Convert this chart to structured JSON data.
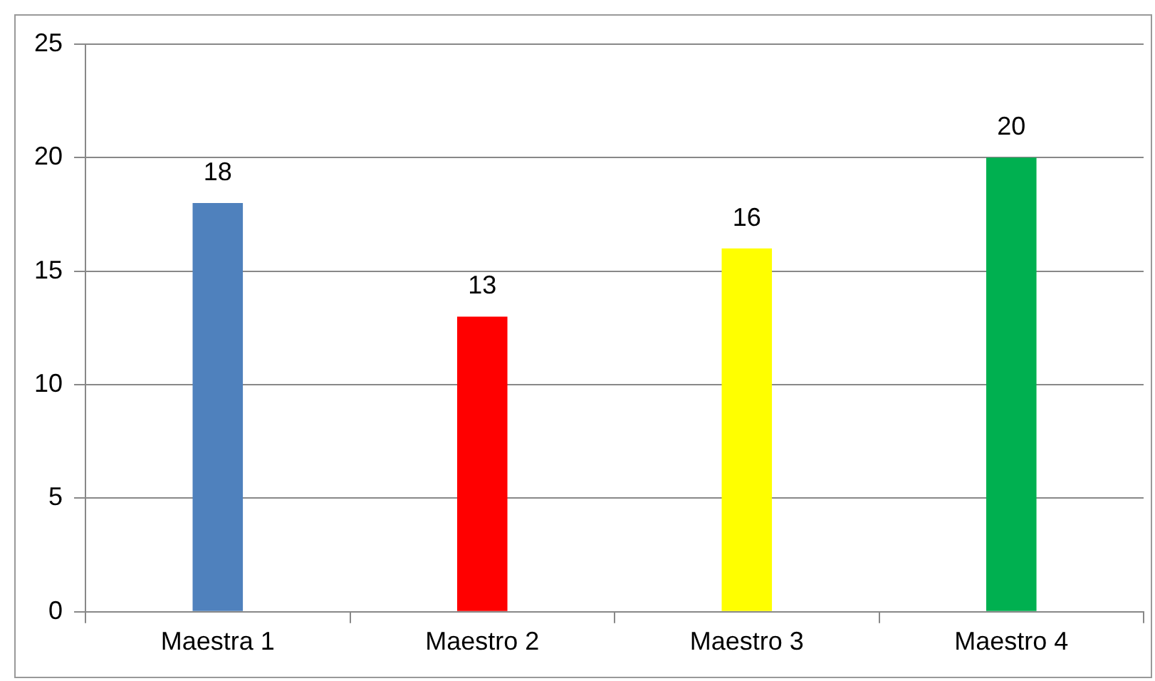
{
  "chart_data": {
    "type": "bar",
    "categories": [
      "Maestra 1",
      "Maestro 2",
      "Maestro 3",
      "Maestro 4"
    ],
    "values": [
      18,
      13,
      16,
      20
    ],
    "colors": [
      "#4f81bd",
      "#ff0000",
      "#ffff00",
      "#00b050"
    ],
    "ylim": [
      0,
      25
    ],
    "yticks": [
      0,
      5,
      10,
      15,
      20,
      25
    ],
    "grid": "y",
    "data_labels": true,
    "legend": false
  }
}
